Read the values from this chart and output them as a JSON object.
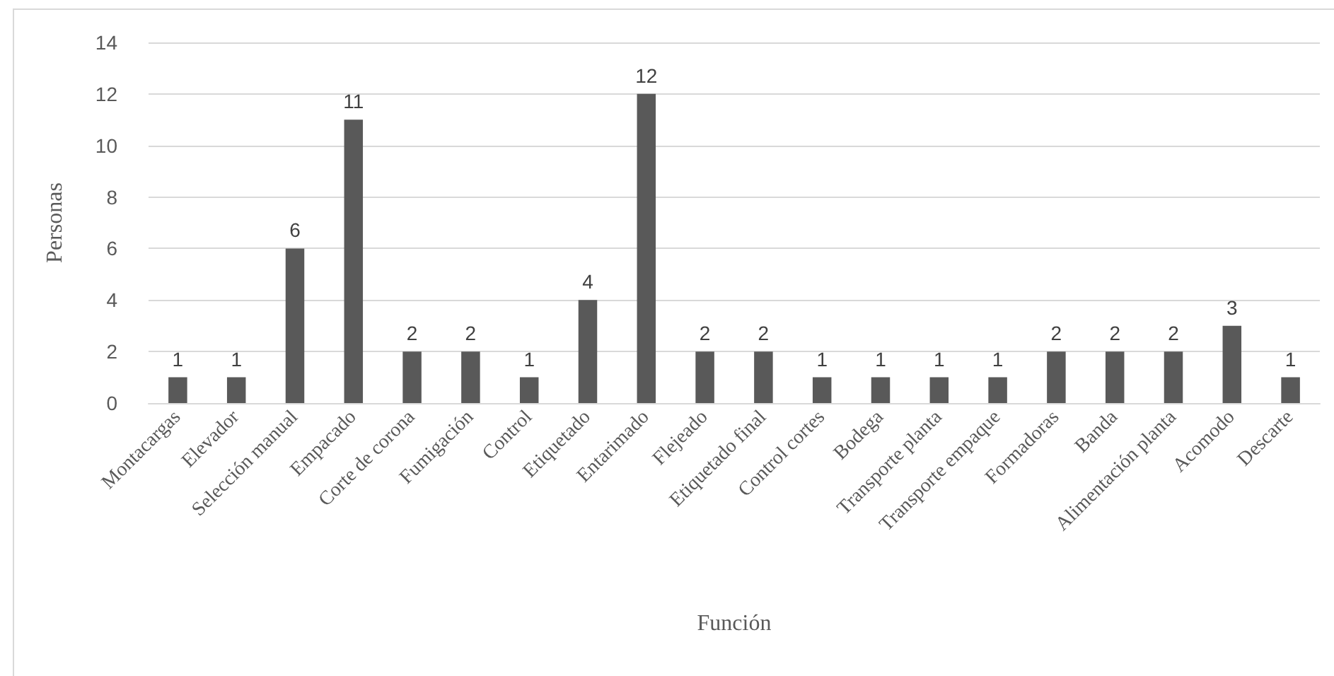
{
  "chart_data": {
    "type": "bar",
    "xlabel": "Función",
    "ylabel": "Personas",
    "categories": [
      "Montacargas",
      "Elevador",
      "Selección manual",
      "Empacado",
      "Corte de corona",
      "Fumigación",
      "Control",
      "Etiquetado",
      "Entarimado",
      "Flejeado",
      "Etiquetado final",
      "Control cortes",
      "Bodega",
      "Transporte planta",
      "Transporte empaque",
      "Formadoras",
      "Banda",
      "Alimentación planta",
      "Acomodo",
      "Descarte"
    ],
    "values": [
      1,
      1,
      6,
      11,
      2,
      2,
      1,
      4,
      12,
      2,
      2,
      1,
      1,
      1,
      1,
      2,
      2,
      2,
      3,
      1
    ],
    "color": "#595959",
    "ylim": [
      0,
      14
    ],
    "yticks": [
      0,
      2,
      4,
      6,
      8,
      10,
      12,
      14
    ],
    "grid": "y",
    "data_labels": true
  }
}
